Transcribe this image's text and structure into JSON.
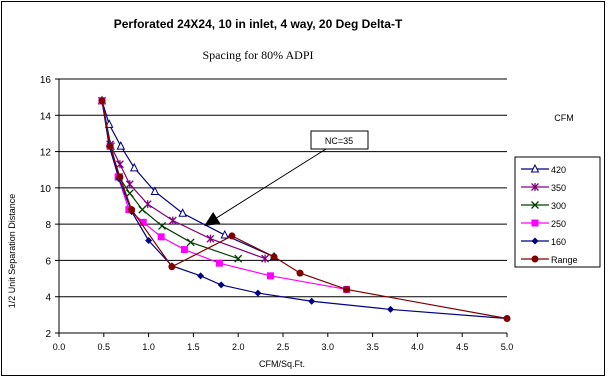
{
  "chart_data": {
    "type": "line",
    "title": "Perforated 24X24, 10 in inlet, 4 way, 20 Deg Delta-T",
    "subtitle": "Spacing for 80% ADPI",
    "xlabel": "CFM/Sq.Ft.",
    "ylabel": "1/2 Unit Separation Distance",
    "xlim": [
      0,
      5
    ],
    "ylim": [
      2,
      16
    ],
    "x_ticks": [
      "0.0",
      "0.5",
      "1.0",
      "1.5",
      "2.0",
      "2.5",
      "3.0",
      "3.5",
      "4.0",
      "4.5",
      "5.0"
    ],
    "y_ticks": [
      "2",
      "4",
      "6",
      "8",
      "10",
      "12",
      "14",
      "16"
    ],
    "grid": "horizontal",
    "legend_title": "CFM",
    "legend_position": "right",
    "annotation": {
      "text": "NC=35",
      "arrow_to": [
        1.62,
        7.9
      ]
    },
    "series": [
      {
        "name": "420",
        "color": "#000080",
        "marker": "triangle",
        "x": [
          0.48,
          0.56,
          0.69,
          0.84,
          1.07,
          1.38,
          1.85,
          2.4
        ],
        "y": [
          14.8,
          13.5,
          12.3,
          11.1,
          9.8,
          8.6,
          7.4,
          6.2
        ]
      },
      {
        "name": "350",
        "color": "#800080",
        "marker": "star",
        "x": [
          0.48,
          0.57,
          0.68,
          0.79,
          0.99,
          1.27,
          1.69,
          2.3
        ],
        "y": [
          14.8,
          12.4,
          11.3,
          10.2,
          9.1,
          8.2,
          7.2,
          6.1
        ]
      },
      {
        "name": "300",
        "color": "#004000",
        "marker": "x",
        "x": [
          0.48,
          0.58,
          0.67,
          0.79,
          0.93,
          1.15,
          1.47,
          2.0
        ],
        "y": [
          14.8,
          12.3,
          10.6,
          9.7,
          8.8,
          7.9,
          7.0,
          6.1
        ]
      },
      {
        "name": "250",
        "color": "#ff00ff",
        "marker": "square",
        "x": [
          0.48,
          0.57,
          0.66,
          0.78,
          0.94,
          1.14,
          1.4,
          1.79,
          2.36,
          3.21
        ],
        "y": [
          14.8,
          12.3,
          10.6,
          8.8,
          8.1,
          7.3,
          6.6,
          5.85,
          5.15,
          4.4
        ]
      },
      {
        "name": "160",
        "color": "#000080",
        "marker": "diamond",
        "x": [
          0.48,
          0.56,
          0.67,
          0.81,
          1.0,
          1.26,
          1.58,
          1.81,
          2.22,
          2.82,
          3.7,
          5.0
        ],
        "y": [
          14.8,
          12.3,
          10.5,
          8.7,
          7.1,
          5.7,
          5.15,
          4.65,
          4.2,
          3.75,
          3.3,
          2.8
        ]
      },
      {
        "name": "Range",
        "color": "#800000",
        "marker": "circle",
        "x": [
          0.48,
          0.57,
          0.68,
          0.81,
          1.26,
          1.93,
          2.4,
          2.69,
          3.21,
          5.0
        ],
        "y": [
          14.8,
          12.3,
          10.6,
          8.8,
          5.65,
          7.35,
          6.2,
          5.3,
          4.4,
          2.8
        ]
      }
    ]
  }
}
